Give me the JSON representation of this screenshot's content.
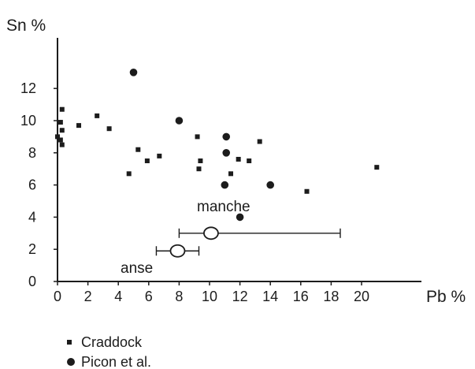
{
  "chart_data": {
    "type": "scatter",
    "title": "",
    "xlabel": "Pb %",
    "ylabel": "Sn %",
    "xlim": [
      0,
      22
    ],
    "ylim": [
      0,
      14
    ],
    "x_ticks": [
      0,
      2,
      4,
      6,
      8,
      10,
      12,
      14,
      16,
      18,
      20
    ],
    "y_ticks": [
      0,
      2,
      4,
      6,
      8,
      10,
      12
    ],
    "series": [
      {
        "name": "Craddock",
        "marker": "square",
        "points": [
          {
            "x": 0.3,
            "y": 10.7
          },
          {
            "x": 0.2,
            "y": 9.9
          },
          {
            "x": 0.3,
            "y": 9.4
          },
          {
            "x": 0.0,
            "y": 9.0
          },
          {
            "x": 0.2,
            "y": 8.8
          },
          {
            "x": 0.3,
            "y": 8.5
          },
          {
            "x": 1.4,
            "y": 9.7
          },
          {
            "x": 2.6,
            "y": 10.3
          },
          {
            "x": 3.4,
            "y": 9.5
          },
          {
            "x": 5.3,
            "y": 8.2
          },
          {
            "x": 6.7,
            "y": 7.8
          },
          {
            "x": 5.9,
            "y": 7.5
          },
          {
            "x": 4.7,
            "y": 6.7
          },
          {
            "x": 9.2,
            "y": 9.0
          },
          {
            "x": 9.4,
            "y": 7.5
          },
          {
            "x": 9.3,
            "y": 7.0
          },
          {
            "x": 11.4,
            "y": 6.7
          },
          {
            "x": 11.9,
            "y": 7.6
          },
          {
            "x": 12.6,
            "y": 7.5
          },
          {
            "x": 13.3,
            "y": 8.7
          },
          {
            "x": 16.4,
            "y": 5.6
          },
          {
            "x": 21.0,
            "y": 7.1
          }
        ]
      },
      {
        "name": "Picon et al.",
        "marker": "filled-circle",
        "points": [
          {
            "x": 5.0,
            "y": 13.0
          },
          {
            "x": 8.0,
            "y": 10.0
          },
          {
            "x": 11.1,
            "y": 9.0
          },
          {
            "x": 11.1,
            "y": 8.0
          },
          {
            "x": 11.0,
            "y": 6.0
          },
          {
            "x": 14.0,
            "y": 6.0
          },
          {
            "x": 12.0,
            "y": 4.0
          }
        ]
      },
      {
        "name": "",
        "marker": "open-circle",
        "points": [
          {
            "x": 10.1,
            "y": 3.0,
            "xmin": 8.0,
            "xmax": 18.6,
            "label": "manche"
          },
          {
            "x": 7.9,
            "y": 1.9,
            "xmin": 6.5,
            "xmax": 9.3,
            "label": "anse"
          }
        ]
      }
    ],
    "legend": {
      "position": "bottom-left",
      "entries": [
        "Craddock",
        "Picon et al."
      ]
    },
    "grid": false,
    "colors": {
      "ink": "#1c1c1c",
      "background": "#ffffff"
    }
  }
}
